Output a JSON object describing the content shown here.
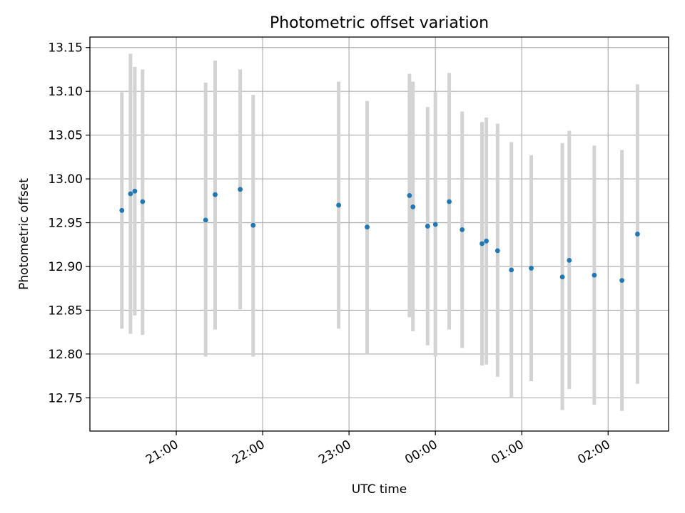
{
  "chart_data": {
    "type": "scatter",
    "title": "Photometric offset variation",
    "xlabel": "UTC time",
    "ylabel": "Photometric offset",
    "x_unit": "hours since 20:00 UTC (24.00 = 00:00 next day)",
    "xlim": [
      20.0,
      26.7
    ],
    "ylim": [
      12.712,
      13.162
    ],
    "grid": true,
    "legend": "none",
    "colors": {
      "point": "#1f77b4",
      "errorbar": "#d3d3d3"
    },
    "x_ticks": [
      {
        "value": 21,
        "label": "21:00"
      },
      {
        "value": 22,
        "label": "22:00"
      },
      {
        "value": 23,
        "label": "23:00"
      },
      {
        "value": 24,
        "label": "00:00"
      },
      {
        "value": 25,
        "label": "01:00"
      },
      {
        "value": 26,
        "label": "02:00"
      }
    ],
    "y_ticks": [
      {
        "value": 12.75,
        "label": "12.75"
      },
      {
        "value": 12.8,
        "label": "12.80"
      },
      {
        "value": 12.85,
        "label": "12.85"
      },
      {
        "value": 12.9,
        "label": "12.90"
      },
      {
        "value": 12.95,
        "label": "12.95"
      },
      {
        "value": 13.0,
        "label": "13.00"
      },
      {
        "value": 13.05,
        "label": "13.05"
      },
      {
        "value": 13.1,
        "label": "13.10"
      },
      {
        "value": 13.15,
        "label": "13.15"
      }
    ],
    "points": [
      {
        "x": 20.37,
        "y": 12.964,
        "lo": 12.829,
        "hi": 13.099
      },
      {
        "x": 20.47,
        "y": 12.983,
        "lo": 12.823,
        "hi": 13.143
      },
      {
        "x": 20.52,
        "y": 12.986,
        "lo": 12.844,
        "hi": 13.128
      },
      {
        "x": 20.61,
        "y": 12.974,
        "lo": 12.822,
        "hi": 13.125
      },
      {
        "x": 21.34,
        "y": 12.953,
        "lo": 12.797,
        "hi": 13.11
      },
      {
        "x": 21.45,
        "y": 12.982,
        "lo": 12.828,
        "hi": 13.135
      },
      {
        "x": 21.74,
        "y": 12.988,
        "lo": 12.851,
        "hi": 13.125
      },
      {
        "x": 21.89,
        "y": 12.947,
        "lo": 12.797,
        "hi": 13.096
      },
      {
        "x": 22.88,
        "y": 12.97,
        "lo": 12.829,
        "hi": 13.111
      },
      {
        "x": 23.21,
        "y": 12.945,
        "lo": 12.8,
        "hi": 13.089
      },
      {
        "x": 23.7,
        "y": 12.981,
        "lo": 12.842,
        "hi": 13.12
      },
      {
        "x": 23.74,
        "y": 12.968,
        "lo": 12.826,
        "hi": 13.111
      },
      {
        "x": 23.91,
        "y": 12.946,
        "lo": 12.81,
        "hi": 13.082
      },
      {
        "x": 24.0,
        "y": 12.948,
        "lo": 12.797,
        "hi": 13.099
      },
      {
        "x": 24.16,
        "y": 12.974,
        "lo": 12.828,
        "hi": 13.121
      },
      {
        "x": 24.31,
        "y": 12.942,
        "lo": 12.807,
        "hi": 13.077
      },
      {
        "x": 24.54,
        "y": 12.926,
        "lo": 12.787,
        "hi": 13.065
      },
      {
        "x": 24.59,
        "y": 12.929,
        "lo": 12.788,
        "hi": 13.07
      },
      {
        "x": 24.72,
        "y": 12.918,
        "lo": 12.774,
        "hi": 13.063
      },
      {
        "x": 24.88,
        "y": 12.896,
        "lo": 12.75,
        "hi": 13.042
      },
      {
        "x": 25.11,
        "y": 12.898,
        "lo": 12.769,
        "hi": 13.027
      },
      {
        "x": 25.47,
        "y": 12.888,
        "lo": 12.736,
        "hi": 13.041
      },
      {
        "x": 25.55,
        "y": 12.907,
        "lo": 12.76,
        "hi": 13.055
      },
      {
        "x": 25.84,
        "y": 12.89,
        "lo": 12.742,
        "hi": 13.038
      },
      {
        "x": 26.16,
        "y": 12.884,
        "lo": 12.735,
        "hi": 13.033
      },
      {
        "x": 26.34,
        "y": 12.937,
        "lo": 12.766,
        "hi": 13.108
      }
    ]
  }
}
